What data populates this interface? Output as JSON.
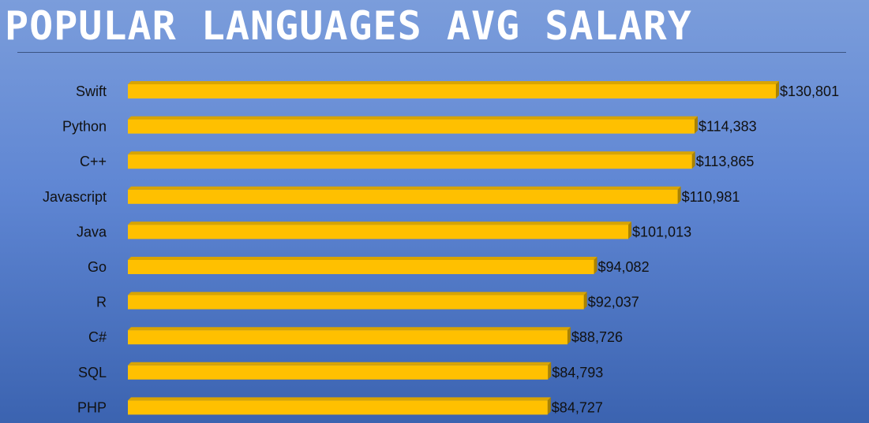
{
  "title": "POPULAR LANGUAGES AVG SALARY",
  "colors": {
    "bar_face": "#ffc000",
    "bar_top": "#d9a400",
    "bar_side": "#a98200",
    "text": "#111111",
    "title": "#ffffff"
  },
  "chart_data": {
    "type": "bar",
    "orientation": "horizontal",
    "title": "POPULAR LANGUAGES AVG SALARY",
    "categories": [
      "Swift",
      "Python",
      "C++",
      "Javascript",
      "Java",
      "Go",
      "R",
      "C#",
      "SQL",
      "PHP"
    ],
    "values": [
      130801,
      114383,
      113865,
      110981,
      101013,
      94082,
      92037,
      88726,
      84793,
      84727
    ],
    "value_labels": [
      "$130,801",
      "$114,383",
      "$113,865",
      "$110,981",
      "$101,013",
      "$94,082",
      "$92,037",
      "$88,726",
      "$84,793",
      "$84,727"
    ],
    "xlim": [
      0,
      130801
    ],
    "grid": false,
    "legend": "none",
    "style": "3d"
  }
}
